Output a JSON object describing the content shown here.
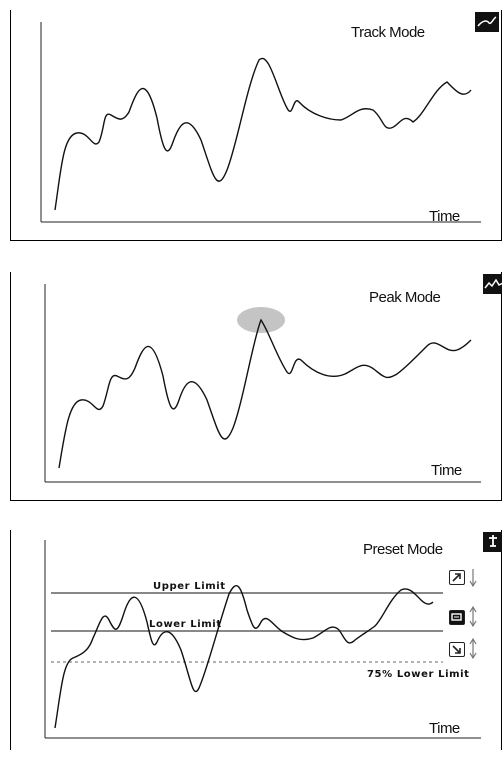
{
  "panels": [
    {
      "mode_label": "Track Mode",
      "icon": "trend-line-icon",
      "x_label": "Time",
      "highlight_peak": false
    },
    {
      "mode_label": "Peak Mode",
      "icon": "peak-line-icon",
      "x_label": "Time",
      "highlight_peak": true
    },
    {
      "mode_label": "Preset Mode",
      "icon": "preset-pin-icon",
      "x_label": "Time",
      "limits": {
        "upper": "Upper Limit",
        "lower": "Lower Limit",
        "lower_75": "75% Lower Limit"
      },
      "controls": [
        {
          "icon": "expand-diagonal-icon",
          "arrow": "down-arrow-icon"
        },
        {
          "icon": "contract-box-icon",
          "arrow": "up-down-arrow-icon"
        },
        {
          "icon": "collapse-diagonal-icon",
          "arrow": "up-down-arrow-icon"
        }
      ]
    }
  ],
  "colors": {
    "curve": "#111111",
    "limit_line": "#888888",
    "peak_highlight": "#c4c4c4",
    "icon_bg": "#111111"
  }
}
